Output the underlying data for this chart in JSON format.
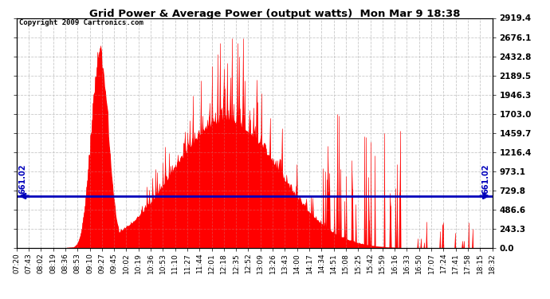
{
  "title": "Grid Power & Average Power (output watts)  Mon Mar 9 18:38",
  "copyright": "Copyright 2009 Cartronics.com",
  "average_value": 661.02,
  "y_max": 2919.4,
  "y_min": 0.0,
  "y_ticks": [
    0.0,
    243.3,
    486.6,
    729.8,
    973.1,
    1216.4,
    1459.7,
    1703.0,
    1946.3,
    2189.5,
    2432.8,
    2676.1,
    2919.4
  ],
  "background_color": "#ffffff",
  "plot_bg_color": "#ffffff",
  "bar_color": "#ff0000",
  "avg_line_color": "#0000bb",
  "grid_color": "#bbbbbb",
  "title_color": "#000000",
  "figsize": [
    6.9,
    3.75
  ],
  "dpi": 100,
  "x_labels": [
    "07:20",
    "07:43",
    "08:02",
    "08:19",
    "08:36",
    "08:53",
    "09:10",
    "09:27",
    "09:45",
    "10:02",
    "10:19",
    "10:36",
    "10:53",
    "11:10",
    "11:27",
    "11:44",
    "12:01",
    "12:18",
    "12:35",
    "12:52",
    "13:09",
    "13:26",
    "13:43",
    "14:00",
    "14:17",
    "14:34",
    "14:51",
    "15:08",
    "15:25",
    "15:42",
    "15:59",
    "16:16",
    "16:33",
    "16:50",
    "17:07",
    "17:24",
    "17:41",
    "17:58",
    "18:15",
    "18:32"
  ]
}
